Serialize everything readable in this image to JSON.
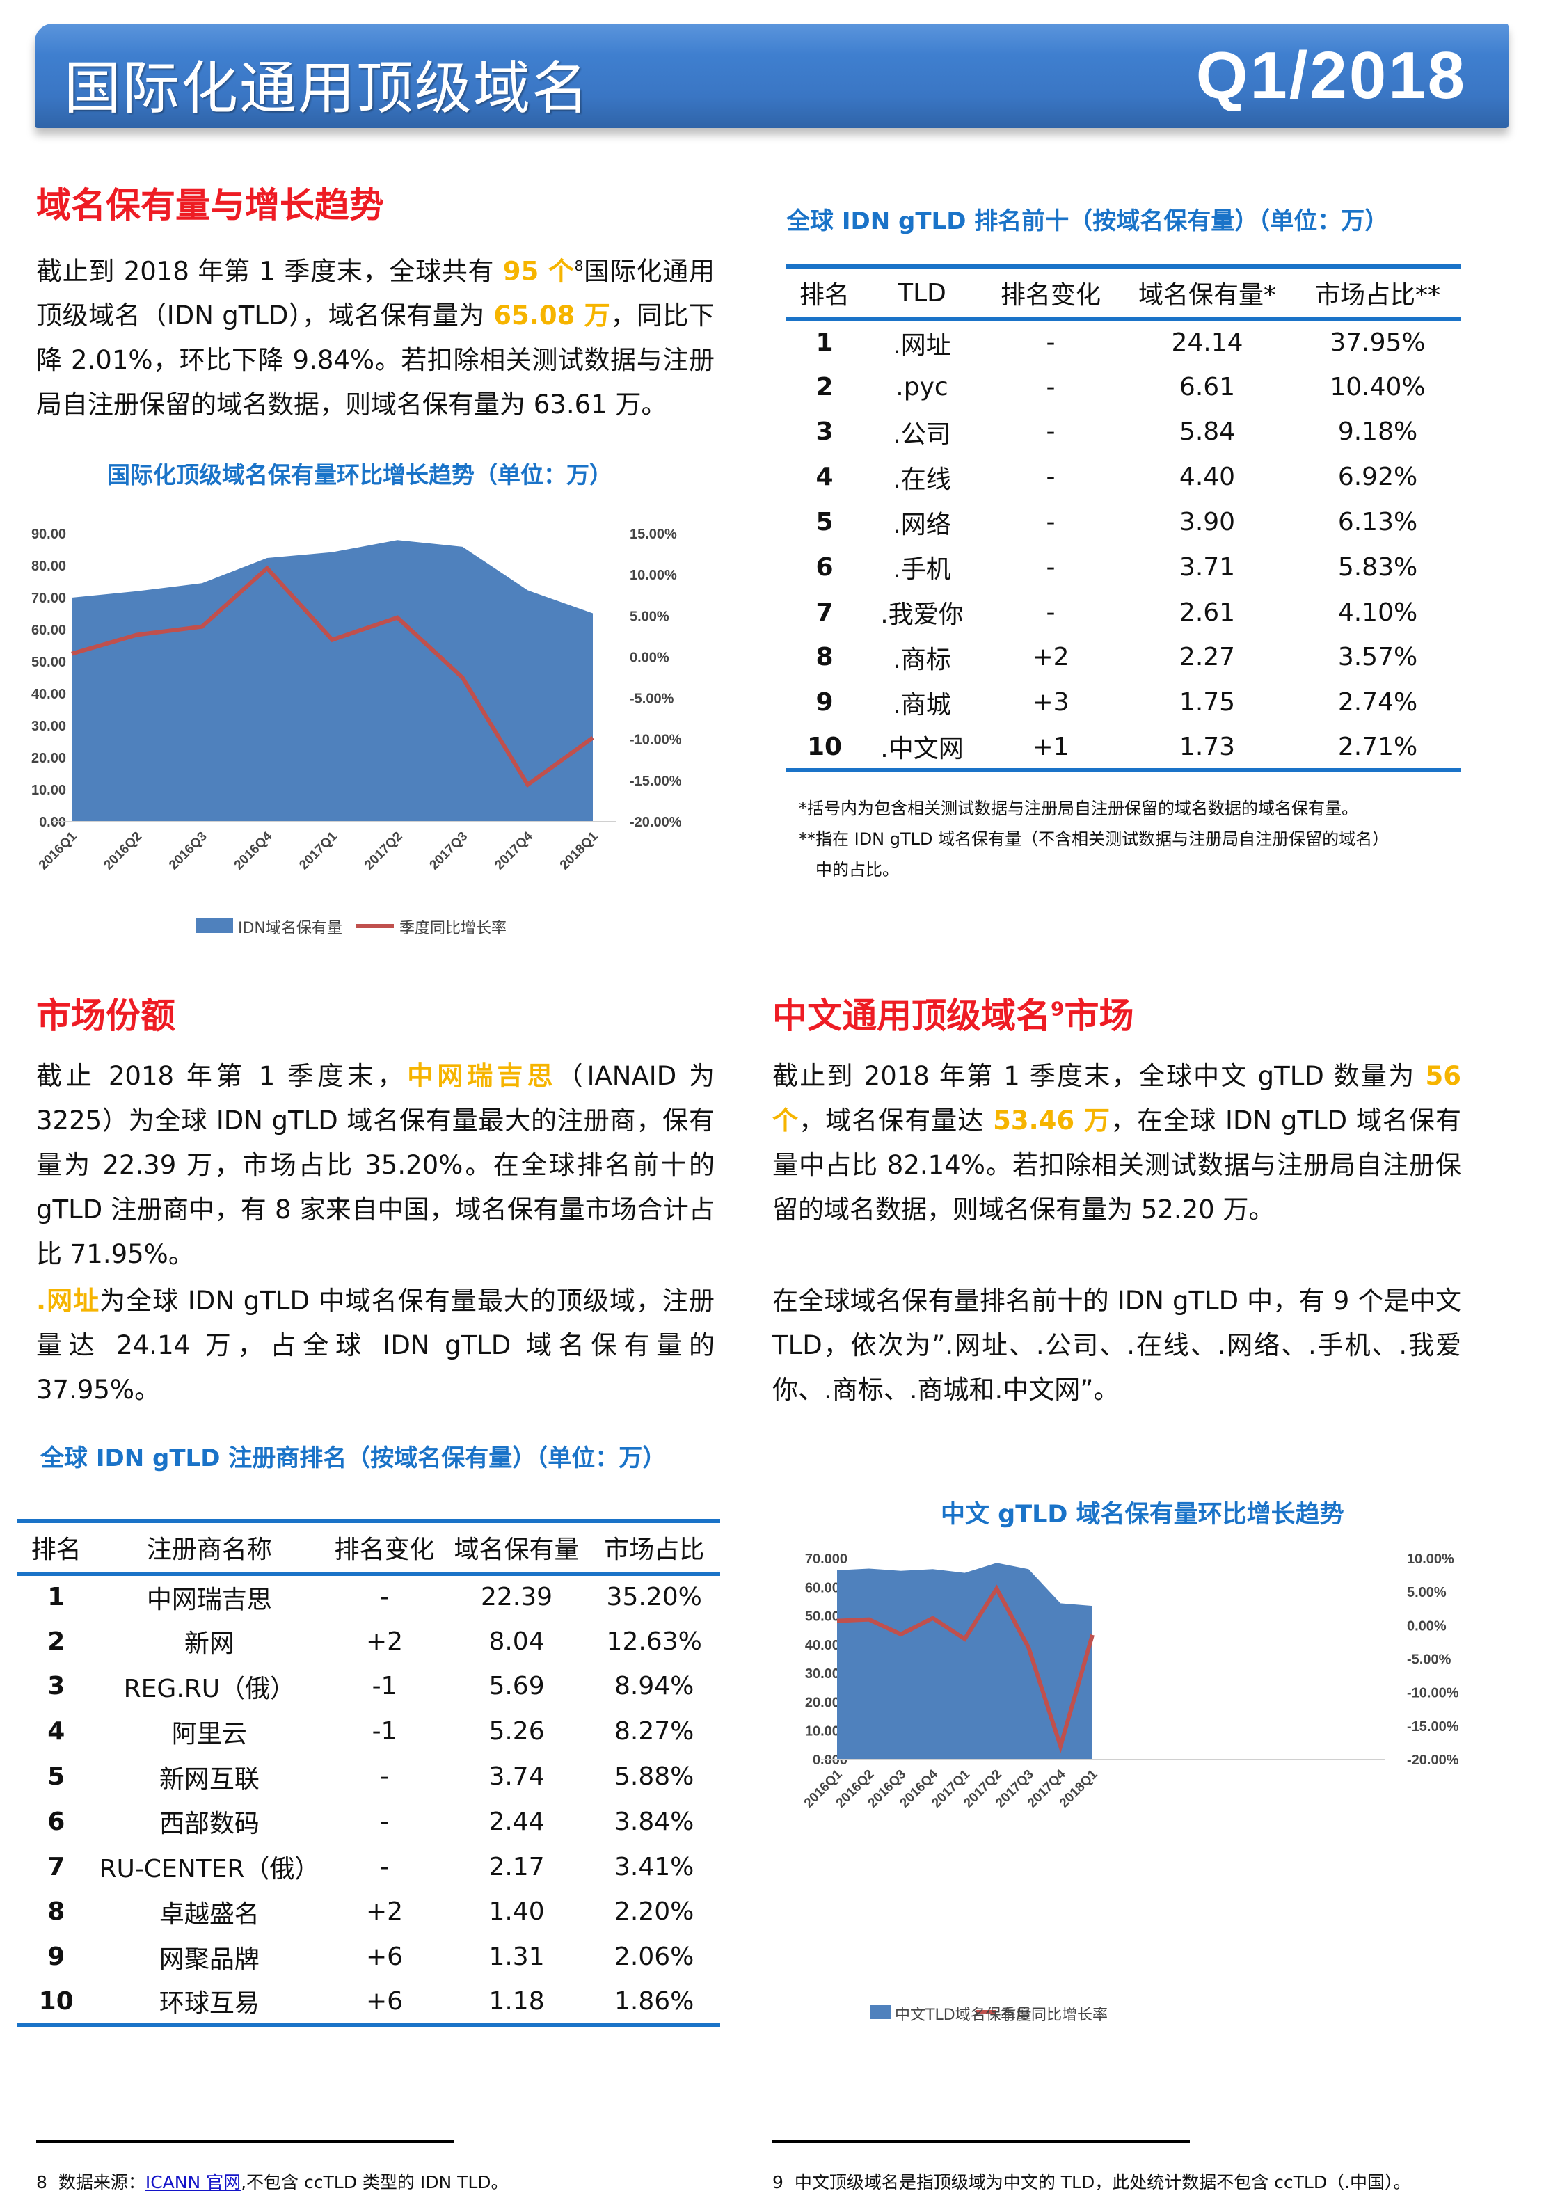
{
  "banner": {
    "title": "国际化通用顶级域名",
    "period": "Q1/2018"
  },
  "section1": {
    "heading": "域名保有量与增长趋势",
    "para": {
      "p1": "截止到 2018 年第 1 季度末，全球共有 ",
      "hl1": "95 个",
      "sup1": "8",
      "p2": "国际化通用顶级域名（IDN gTLD），域名保有量为 ",
      "hl2": "65.08 万",
      "p3": "，同比下降 2.01%，环比下降 9.84%。若扣除相关测试数据与注册局自注册保留的域名数据，则域名保有量为 63.61 万。"
    }
  },
  "chart1": {
    "title": "国际化顶级域名保有量环比增长趋势（单位：万）",
    "legend_area": "IDN域名保有量",
    "legend_line": "季度同比增长率"
  },
  "tld_table": {
    "title": "全球 IDN gTLD 排名前十（按域名保有量）（单位：万）",
    "headers": [
      "排名",
      "TLD",
      "排名变化",
      "域名保有量*",
      "市场占比**"
    ],
    "rows": [
      [
        "1",
        ".网址",
        "-",
        "24.14",
        "37.95%"
      ],
      [
        "2",
        ".рус",
        "-",
        "6.61",
        "10.40%"
      ],
      [
        "3",
        ".公司",
        "-",
        "5.84",
        "9.18%"
      ],
      [
        "4",
        ".在线",
        "-",
        "4.40",
        "6.92%"
      ],
      [
        "5",
        ".网络",
        "-",
        "3.90",
        "6.13%"
      ],
      [
        "6",
        ".手机",
        "-",
        "3.71",
        "5.83%"
      ],
      [
        "7",
        ".我爱你",
        "-",
        "2.61",
        "4.10%"
      ],
      [
        "8",
        ".商标",
        "+2",
        "2.27",
        "3.57%"
      ],
      [
        "9",
        ".商城",
        "+3",
        "1.75",
        "2.74%"
      ],
      [
        "10",
        ".中文网",
        "+1",
        "1.73",
        "2.71%"
      ]
    ],
    "notes": [
      "*括号内为包含相关测试数据与注册局自注册保留的域名数据的域名保有量。",
      "**指在 IDN gTLD 域名保有量（不含相关测试数据与注册局自注册保留的域名）",
      "中的占比。"
    ]
  },
  "section2": {
    "heading": "市场份额",
    "para1": {
      "p1": "截止 2018 年第 1 季度末，",
      "hl1": "中网瑞吉思",
      "p2": "（IANAID 为 3225）为全球 IDN gTLD 域名保有量最大的注册商，保有量为 22.39 万，市场占比 35.20%。在全球排名前十的 gTLD 注册商中，有 8 家来自中国，域名保有量市场合计占比 71.95%。"
    },
    "para2": {
      "hl1": ".网址",
      "p1": "为全球 IDN gTLD 中域名保有量最大的顶级域，注册量达 24.14 万，占全球 IDN gTLD 域名保有量的 37.95%。"
    }
  },
  "registrar_table": {
    "title": "全球 IDN gTLD 注册商排名（按域名保有量）（单位：万）",
    "headers": [
      "排名",
      "注册商名称",
      "排名变化",
      "域名保有量",
      "市场占比"
    ],
    "rows": [
      [
        "1",
        "中网瑞吉思",
        "-",
        "22.39",
        "35.20%"
      ],
      [
        "2",
        "新网",
        "+2",
        "8.04",
        "12.63%"
      ],
      [
        "3",
        "REG.RU（俄）",
        "-1",
        "5.69",
        "8.94%"
      ],
      [
        "4",
        "阿里云",
        "-1",
        "5.26",
        "8.27%"
      ],
      [
        "5",
        "新网互联",
        "-",
        "3.74",
        "5.88%"
      ],
      [
        "6",
        "西部数码",
        "-",
        "2.44",
        "3.84%"
      ],
      [
        "7",
        "RU-CENTER（俄）",
        "-",
        "2.17",
        "3.41%"
      ],
      [
        "8",
        "卓越盛名",
        "+2",
        "1.40",
        "2.20%"
      ],
      [
        "9",
        "网聚品牌",
        "+6",
        "1.31",
        "2.06%"
      ],
      [
        "10",
        "环球互易",
        "+6",
        "1.18",
        "1.86%"
      ]
    ]
  },
  "section3": {
    "heading": "中文通用顶级域名",
    "heading_sup": "9",
    "heading_tail": "市场",
    "para1": {
      "p1": "截止到 2018 年第 1 季度末，全球中文 gTLD 数量为 ",
      "hl1": "56 个",
      "p2": "，域名保有量达 ",
      "hl2": "53.46 万",
      "p3": "，在全球 IDN gTLD 域名保有量中占比 82.14%。若扣除相关测试数据与注册局自注册保留的域名数据，则域名保有量为 52.20 万。"
    },
    "para2": "在全球域名保有量排名前十的 IDN gTLD 中，有 9 个是中文 TLD，依次为”.网址、.公司、.在线、.网络、.手机、.我爱你、.商标、.商城和.中文网”。"
  },
  "chart2": {
    "title": "中文 gTLD 域名保有量环比增长趋势",
    "legend_area": "中文TLD域名保有量",
    "legend_line": "季度同比增长率"
  },
  "footnotes": {
    "fn8": {
      "num": "8",
      "pre": "数据来源：",
      "link": "ICANN 官网",
      "post": ",不包含 ccTLD 类型的 IDN TLD。"
    },
    "fn9": {
      "num": "9",
      "text": "中文顶级域名是指顶级域为中文的 TLD，此处统计数据不包含 ccTLD（.中国）。"
    }
  },
  "colors": {
    "area": "#4f81bd",
    "line": "#c0504d",
    "heading_red": "#ee1c24",
    "highlight": "#f6b400",
    "blue_title": "#1a73c8"
  },
  "chart_data": [
    {
      "type": "area",
      "title": "国际化顶级域名保有量环比增长趋势（单位：万）",
      "categories": [
        "2016Q1",
        "2016Q2",
        "2016Q3",
        "2016Q4",
        "2017Q1",
        "2017Q2",
        "2017Q3",
        "2017Q4",
        "2018Q1"
      ],
      "series": [
        {
          "name": "IDN域名保有量",
          "type": "area",
          "axis": "left",
          "values": [
            70.0,
            72.0,
            74.5,
            82.4,
            84.2,
            88.0,
            85.9,
            72.3,
            65.1
          ]
        },
        {
          "name": "季度同比增长率",
          "type": "line",
          "axis": "right",
          "values": [
            0.4,
            2.7,
            3.7,
            10.8,
            2.1,
            4.8,
            -2.5,
            -15.5,
            -9.8
          ]
        }
      ],
      "ylim": [
        0,
        90
      ],
      "yticks": [
        "0.00",
        "10.00",
        "20.00",
        "30.00",
        "40.00",
        "50.00",
        "60.00",
        "70.00",
        "80.00",
        "90.00"
      ],
      "y2lim": [
        -20,
        15
      ],
      "y2ticks": [
        "-20.00%",
        "-15.00%",
        "-10.00%",
        "-5.00%",
        "0.00%",
        "5.00%",
        "10.00%",
        "15.00%"
      ],
      "legend_position": "bottom",
      "grid": false
    },
    {
      "type": "area",
      "title": "中文 gTLD 域名保有量环比增长趋势",
      "categories": [
        "2016Q1",
        "2016Q2",
        "2016Q3",
        "2016Q4",
        "2017Q1",
        "2017Q2",
        "2017Q3",
        "2017Q4",
        "2018Q1"
      ],
      "series": [
        {
          "name": "中文TLD域名保有量",
          "type": "area",
          "axis": "left",
          "values": [
            65.9,
            66.5,
            65.7,
            66.3,
            65.0,
            68.5,
            66.3,
            54.4,
            53.5
          ]
        },
        {
          "name": "季度同比增长率",
          "type": "line",
          "axis": "right",
          "values": [
            0.7,
            0.9,
            -1.3,
            1.1,
            -2.0,
            5.5,
            -3.3,
            -18.0,
            -1.4
          ]
        }
      ],
      "ylim": [
        0,
        70
      ],
      "yticks": [
        "0.000",
        "10.000",
        "20.000",
        "30.000",
        "40.000",
        "50.000",
        "60.000",
        "70.000"
      ],
      "y2lim": [
        -20,
        10
      ],
      "y2ticks": [
        "-20.00%",
        "-15.00%",
        "-10.00%",
        "-5.00%",
        "0.00%",
        "5.00%",
        "10.00%"
      ],
      "legend_position": "bottom",
      "grid": false
    }
  ]
}
